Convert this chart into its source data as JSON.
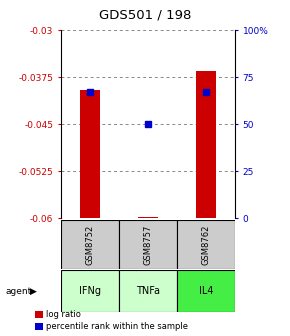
{
  "title": "GDS501 / 198",
  "samples": [
    "GSM8752",
    "GSM8757",
    "GSM8762"
  ],
  "agents": [
    "IFNg",
    "TNFa",
    "IL4"
  ],
  "log_ratio": [
    -0.0395,
    -0.0597,
    -0.0365
  ],
  "log_ratio_base": -0.06,
  "percentile": [
    67,
    50,
    67
  ],
  "ylim_left": [
    -0.06,
    -0.03
  ],
  "ylim_right": [
    0,
    100
  ],
  "yticks_left": [
    -0.06,
    -0.0525,
    -0.045,
    -0.0375,
    -0.03
  ],
  "ytick_labels_left": [
    "-0.06",
    "-0.0525",
    "-0.045",
    "-0.0375",
    "-0.03"
  ],
  "yticks_right": [
    0,
    25,
    50,
    75,
    100
  ],
  "ytick_labels_right": [
    "0",
    "25",
    "50",
    "75",
    "100%"
  ],
  "bar_color": "#cc0000",
  "dot_color": "#0000cc",
  "sample_bg": "#cccccc",
  "agent_bg": [
    "#ccffcc",
    "#ccffcc",
    "#44ee44"
  ],
  "grid_color": "#888888",
  "left_label_color": "#cc0000",
  "right_label_color": "#0000cc",
  "bar_width": 0.35
}
